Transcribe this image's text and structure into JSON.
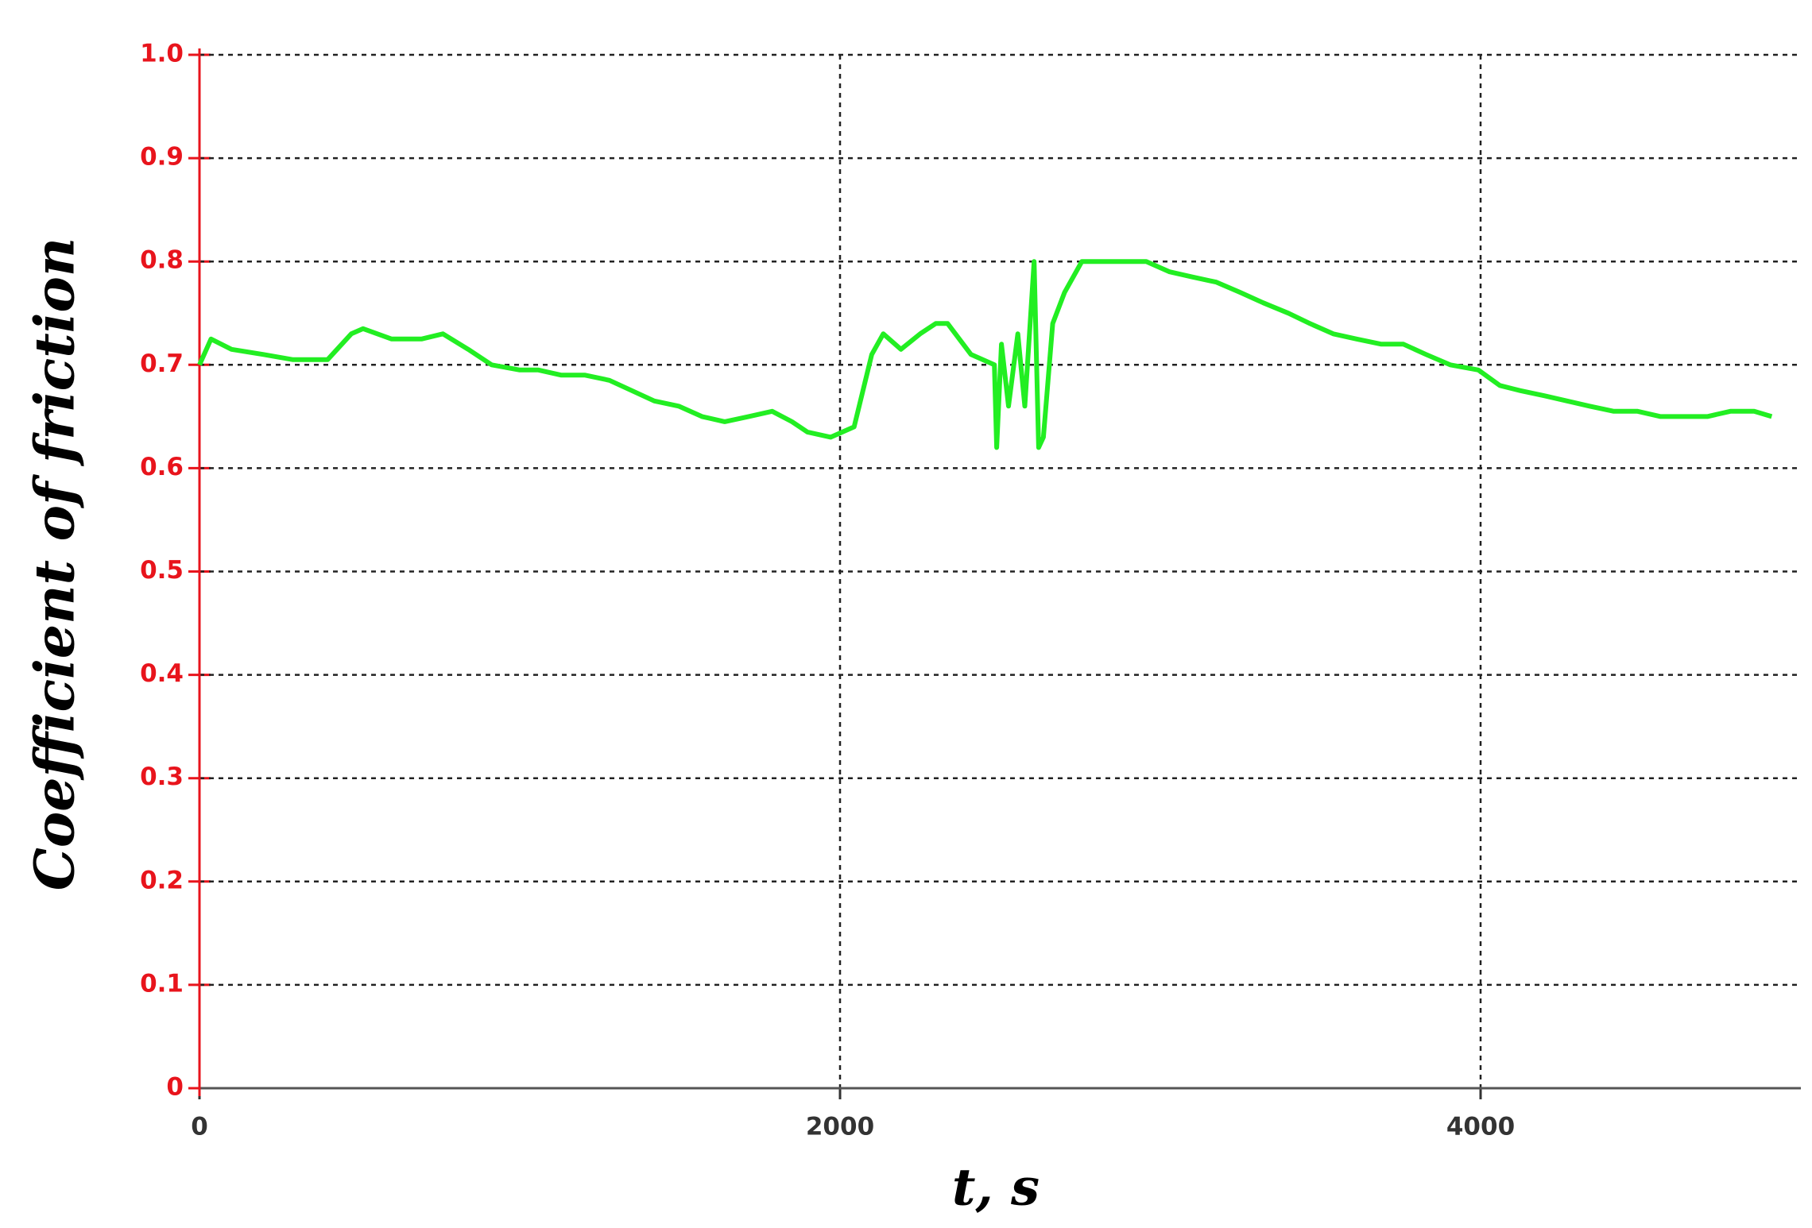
{
  "chart_data": {
    "type": "line",
    "y_label": "Coefficient of friction",
    "x_label": "t, s",
    "x": [
      0,
      36,
      100,
      200,
      292,
      400,
      474,
      511,
      600,
      693,
      760,
      839,
      912,
      1000,
      1058,
      1130,
      1204,
      1280,
      1350,
      1420,
      1496,
      1569,
      1640,
      1715,
      1788,
      1850,
      1898,
      1971,
      2044,
      2099,
      2135,
      2190,
      2250,
      2299,
      2336,
      2409,
      2482,
      2489,
      2504,
      2526,
      2555,
      2577,
      2606,
      2620,
      2635,
      2664,
      2701,
      2755,
      2820,
      2883,
      2956,
      3029,
      3100,
      3175,
      3250,
      3321,
      3400,
      3467,
      3540,
      3613,
      3690,
      3759,
      3830,
      3905,
      3993,
      4060,
      4124,
      4200,
      4270,
      4340,
      4416,
      4490,
      4562,
      4640,
      4708,
      4780,
      4854,
      4909
    ],
    "series": [
      {
        "name": "Coefficient of friction",
        "color": "#22ee22",
        "values": [
          0.7,
          0.725,
          0.715,
          0.71,
          0.705,
          0.705,
          0.73,
          0.735,
          0.725,
          0.725,
          0.73,
          0.715,
          0.7,
          0.695,
          0.695,
          0.69,
          0.69,
          0.685,
          0.675,
          0.665,
          0.66,
          0.65,
          0.645,
          0.65,
          0.655,
          0.645,
          0.635,
          0.63,
          0.64,
          0.71,
          0.73,
          0.715,
          0.73,
          0.74,
          0.74,
          0.71,
          0.7,
          0.62,
          0.72,
          0.66,
          0.73,
          0.66,
          0.8,
          0.62,
          0.63,
          0.74,
          0.77,
          0.8,
          0.8,
          0.8,
          0.8,
          0.79,
          0.785,
          0.78,
          0.77,
          0.76,
          0.75,
          0.74,
          0.73,
          0.725,
          0.72,
          0.72,
          0.71,
          0.7,
          0.695,
          0.68,
          0.675,
          0.67,
          0.665,
          0.66,
          0.655,
          0.655,
          0.65,
          0.65,
          0.65,
          0.655,
          0.655,
          0.65
        ]
      }
    ],
    "xlim": [
      0,
      5000
    ],
    "xticks": [
      0,
      2000,
      4000
    ],
    "ylim": [
      0,
      1
    ],
    "yticks": [
      0,
      0.1,
      0.2,
      0.3,
      0.4,
      0.5,
      0.6,
      0.7,
      0.8,
      0.9,
      {
        "value": 1,
        "label": "1.0"
      }
    ],
    "grid": true,
    "tick_color": "#e8141c"
  }
}
